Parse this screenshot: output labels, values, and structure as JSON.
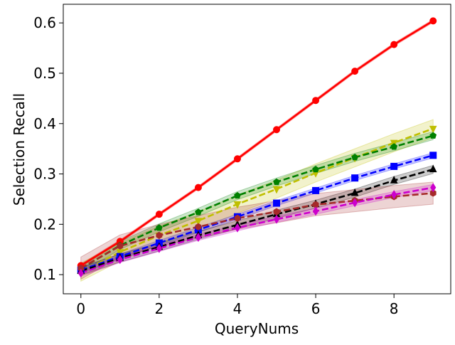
{
  "chart_data": {
    "type": "line",
    "title": "",
    "xlabel": "QueryNums",
    "ylabel": "Selection Recall",
    "xlim": [
      -0.45,
      9.45
    ],
    "ylim": [
      0.062,
      0.637
    ],
    "xticks": [
      0,
      2,
      4,
      6,
      8
    ],
    "xtick_labels": [
      "0",
      "2",
      "4",
      "6",
      "8"
    ],
    "yticks": [
      0.1,
      0.2,
      0.3,
      0.4,
      0.5,
      0.6
    ],
    "ytick_labels": [
      "0.1",
      "0.2",
      "0.3",
      "0.4",
      "0.5",
      "0.6"
    ],
    "grid": false,
    "legend": "none",
    "x": [
      0,
      1,
      2,
      3,
      4,
      5,
      6,
      7,
      8,
      9
    ],
    "series": [
      {
        "color": "#ff0000",
        "marker": "circle",
        "dashed": false,
        "values": [
          0.118,
          0.166,
          0.22,
          0.273,
          0.33,
          0.388,
          0.446,
          0.504,
          0.557,
          0.604
        ],
        "band": 0.003
      },
      {
        "color": "#bfbf00",
        "marker": "triangle-down",
        "dashed": true,
        "values": [
          0.105,
          0.145,
          0.178,
          0.207,
          0.24,
          0.27,
          0.302,
          0.332,
          0.362,
          0.39
        ],
        "band": 0.018
      },
      {
        "color": "#008000",
        "marker": "pentagon",
        "dashed": true,
        "values": [
          0.112,
          0.158,
          0.193,
          0.224,
          0.257,
          0.284,
          0.309,
          0.333,
          0.354,
          0.376
        ],
        "band": 0.008
      },
      {
        "color": "#0000ff",
        "marker": "square",
        "dashed": true,
        "values": [
          0.109,
          0.136,
          0.163,
          0.189,
          0.215,
          0.242,
          0.267,
          0.292,
          0.315,
          0.337
        ],
        "band": 0.005
      },
      {
        "color": "#000000",
        "marker": "triangle-up",
        "dashed": true,
        "values": [
          0.107,
          0.133,
          0.155,
          0.178,
          0.199,
          0.22,
          0.24,
          0.262,
          0.287,
          0.309
        ],
        "band": 0.008
      },
      {
        "color": "#a52a2a",
        "marker": "hexagon",
        "dashed": true,
        "values": [
          0.113,
          0.157,
          0.178,
          0.195,
          0.212,
          0.225,
          0.239,
          0.247,
          0.255,
          0.262
        ],
        "band": 0.022
      },
      {
        "color": "#cc00cc",
        "marker": "diamond",
        "dashed": true,
        "values": [
          0.103,
          0.13,
          0.152,
          0.174,
          0.193,
          0.21,
          0.226,
          0.243,
          0.259,
          0.273
        ],
        "band": 0.006
      }
    ]
  }
}
